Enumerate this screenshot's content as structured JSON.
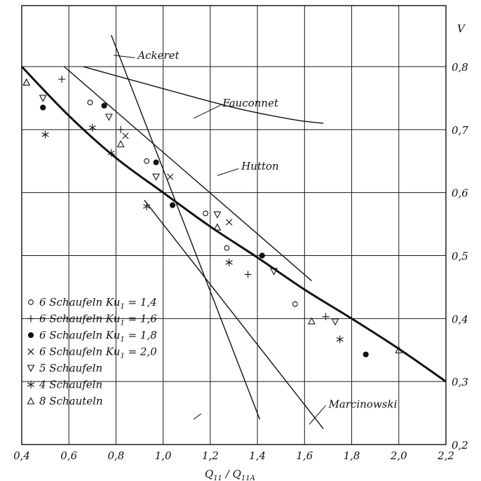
{
  "chart_data": {
    "type": "scatter",
    "xlabel": "Q11 / Q11A",
    "ylabel": "V",
    "xlim": [
      0.4,
      2.2
    ],
    "ylim": [
      0.2,
      0.85
    ],
    "x_ticks": [
      "0,4",
      "0,6",
      "0,8",
      "1,0",
      "1,2",
      "1,4",
      "1,6",
      "1,8",
      "2,0",
      "2,2"
    ],
    "y_ticks": [
      "0,2",
      "0,3",
      "0,4",
      "0,5",
      "0,6",
      "0,7",
      "0,8"
    ],
    "grid": true,
    "legend_position": "bottom-left",
    "curves": [
      {
        "name": "Ackeret",
        "points": [
          [
            0.78,
            0.85
          ],
          [
            1.41,
            0.24
          ]
        ],
        "label_at": [
          0.88,
          0.818
        ]
      },
      {
        "name": "Fauconnet",
        "points": [
          [
            0.66,
            0.8
          ],
          [
            1.0,
            0.765
          ],
          [
            1.3,
            0.735
          ],
          [
            1.55,
            0.716
          ],
          [
            1.68,
            0.71
          ]
        ],
        "label_at": [
          1.24,
          0.742
        ]
      },
      {
        "name": "Hutton",
        "points": [
          [
            0.58,
            0.8
          ],
          [
            1.63,
            0.46
          ]
        ],
        "label_at": [
          1.32,
          0.642
        ]
      },
      {
        "name": "Marcinowski",
        "points": [
          [
            0.92,
            0.588
          ],
          [
            1.68,
            0.225
          ]
        ],
        "label_at": [
          1.69,
          0.264
        ]
      },
      {
        "name": "",
        "points": [
          [
            0.4,
            0.8
          ],
          [
            0.6,
            0.722
          ],
          [
            0.8,
            0.655
          ],
          [
            1.0,
            0.6
          ],
          [
            1.2,
            0.546
          ],
          [
            1.4,
            0.497
          ],
          [
            1.6,
            0.446
          ],
          [
            1.8,
            0.4
          ],
          [
            2.0,
            0.352
          ],
          [
            2.2,
            0.3
          ]
        ],
        "thick": true
      }
    ],
    "legend": [
      {
        "symbol": "circle",
        "label": "6 Schaufeln  Ku",
        "sub": "1",
        "value": "= 1,4"
      },
      {
        "symbol": "plus",
        "label": "6 Schaufeln  Ku",
        "sub": "1",
        "value": "= 1,6"
      },
      {
        "symbol": "dot",
        "label": "6 Schaufeln  Ku",
        "sub": "1",
        "value": "= 1,8"
      },
      {
        "symbol": "cross",
        "label": "6 Schaufeln  Ku",
        "sub": "1",
        "value": "= 2,0"
      },
      {
        "symbol": "tri-down",
        "label": "5 Schaufeln",
        "sub": "",
        "value": ""
      },
      {
        "symbol": "asterisk",
        "label": "4 Schaufeln",
        "sub": "",
        "value": ""
      },
      {
        "symbol": "tri-up",
        "label": "8 Schauteln",
        "sub": "",
        "value": ""
      }
    ],
    "points": {
      "circle": [
        [
          0.69,
          0.743
        ],
        [
          0.93,
          0.65
        ],
        [
          1.18,
          0.567
        ],
        [
          1.27,
          0.512
        ],
        [
          1.56,
          0.423
        ]
      ],
      "plus": [
        [
          0.57,
          0.78
        ],
        [
          0.82,
          0.7
        ],
        [
          1.36,
          0.47
        ],
        [
          1.69,
          0.403
        ]
      ],
      "dot": [
        [
          0.49,
          0.735
        ],
        [
          0.75,
          0.738
        ],
        [
          0.97,
          0.648
        ],
        [
          1.04,
          0.58
        ],
        [
          1.42,
          0.5
        ],
        [
          1.86,
          0.343
        ]
      ],
      "cross": [
        [
          0.84,
          0.69
        ],
        [
          1.03,
          0.625
        ],
        [
          1.28,
          0.553
        ]
      ],
      "tri-down": [
        [
          0.49,
          0.75
        ],
        [
          0.77,
          0.72
        ],
        [
          0.97,
          0.625
        ],
        [
          1.23,
          0.565
        ],
        [
          1.47,
          0.475
        ],
        [
          1.73,
          0.395
        ]
      ],
      "asterisk": [
        [
          0.5,
          0.692
        ],
        [
          0.7,
          0.703
        ],
        [
          0.78,
          0.663
        ],
        [
          0.93,
          0.578
        ],
        [
          1.28,
          0.489
        ],
        [
          1.75,
          0.367
        ]
      ],
      "tri-up": [
        [
          0.42,
          0.775
        ],
        [
          0.82,
          0.677
        ],
        [
          1.23,
          0.545
        ],
        [
          1.63,
          0.396
        ],
        [
          2.0,
          0.35
        ]
      ]
    }
  }
}
